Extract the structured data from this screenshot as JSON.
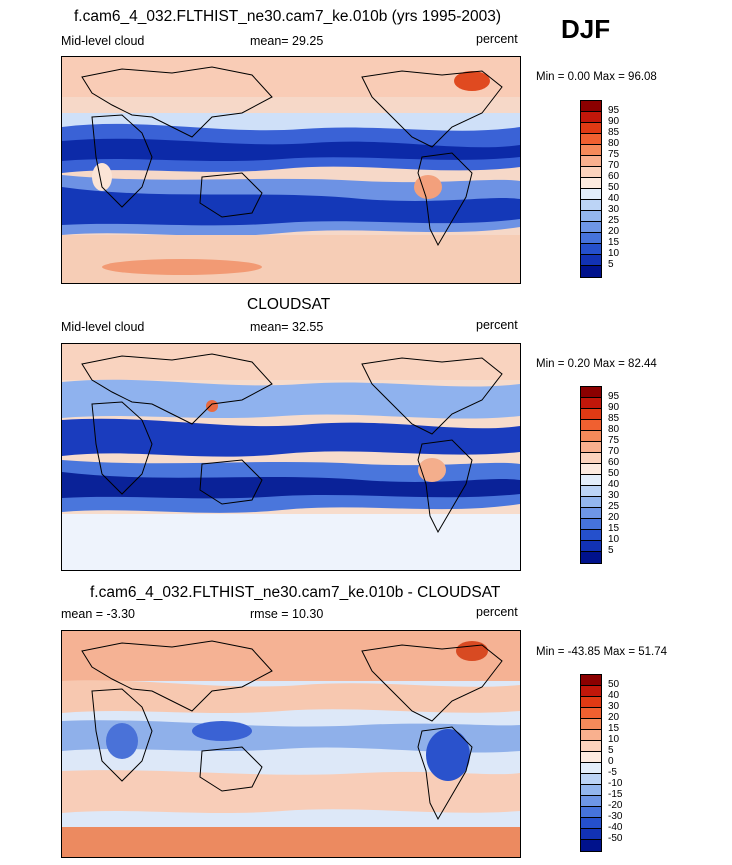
{
  "header": {
    "season": "DJF"
  },
  "panels": [
    {
      "title": "f.cam6_4_032.FLTHIST_ne30.cam7_ke.010b (yrs 1995-2003)",
      "left_label": "Mid-level cloud",
      "center_label": "mean=  29.25",
      "right_label": "percent",
      "minmax": "Min =   0.00 Max =  96.08",
      "colorbar_labels": [
        "95",
        "90",
        "85",
        "80",
        "75",
        "70",
        "60",
        "50",
        "40",
        "30",
        "25",
        "20",
        "15",
        "10",
        "5"
      ],
      "colorbar_colors": [
        "#8b0000",
        "#c1170a",
        "#e03a14",
        "#f06030",
        "#f58a5a",
        "#f9b08e",
        "#fcd3bd",
        "#fdebe0",
        "#e3eefb",
        "#bcd4f6",
        "#93b6ee",
        "#6e96e6",
        "#4673dc",
        "#2550cc",
        "#1232b4",
        "#00128c"
      ]
    },
    {
      "title": "CLOUDSAT",
      "left_label": "Mid-level cloud",
      "center_label": "mean=  32.55",
      "right_label": "percent",
      "minmax": "Min =   0.20 Max =  82.44",
      "colorbar_labels": [
        "95",
        "90",
        "85",
        "80",
        "75",
        "70",
        "60",
        "50",
        "40",
        "30",
        "25",
        "20",
        "15",
        "10",
        "5"
      ],
      "colorbar_colors": [
        "#8b0000",
        "#c1170a",
        "#e03a14",
        "#f06030",
        "#f58a5a",
        "#f9b08e",
        "#fcd3bd",
        "#fdebe0",
        "#e3eefb",
        "#bcd4f6",
        "#93b6ee",
        "#6e96e6",
        "#4673dc",
        "#2550cc",
        "#1232b4",
        "#00128c"
      ]
    },
    {
      "title": "f.cam6_4_032.FLTHIST_ne30.cam7_ke.010b - CLOUDSAT",
      "left_label": "mean =  -3.30",
      "center_label": "rmse =  10.30",
      "right_label": "percent",
      "minmax": "Min = -43.85 Max =  51.74",
      "colorbar_labels": [
        "50",
        "40",
        "30",
        "20",
        "15",
        "10",
        "5",
        "0",
        "-5",
        "-10",
        "-15",
        "-20",
        "-30",
        "-40",
        "-50"
      ],
      "colorbar_colors": [
        "#8b0000",
        "#c1170a",
        "#e03a14",
        "#f06030",
        "#f58a5a",
        "#f9b08e",
        "#fcd3bd",
        "#fdebe0",
        "#e3eefb",
        "#bcd4f6",
        "#93b6ee",
        "#6e96e6",
        "#4673dc",
        "#2550cc",
        "#1232b4",
        "#00128c"
      ]
    }
  ],
  "field_colors": {
    "ocean_light": "#f4dcd0",
    "ocean_pink": "#f9c2a8",
    "deep_blue": "#1030b8",
    "mid_blue": "#5a86e0",
    "light_blue": "#c8daf6",
    "red": "#e85a30"
  }
}
